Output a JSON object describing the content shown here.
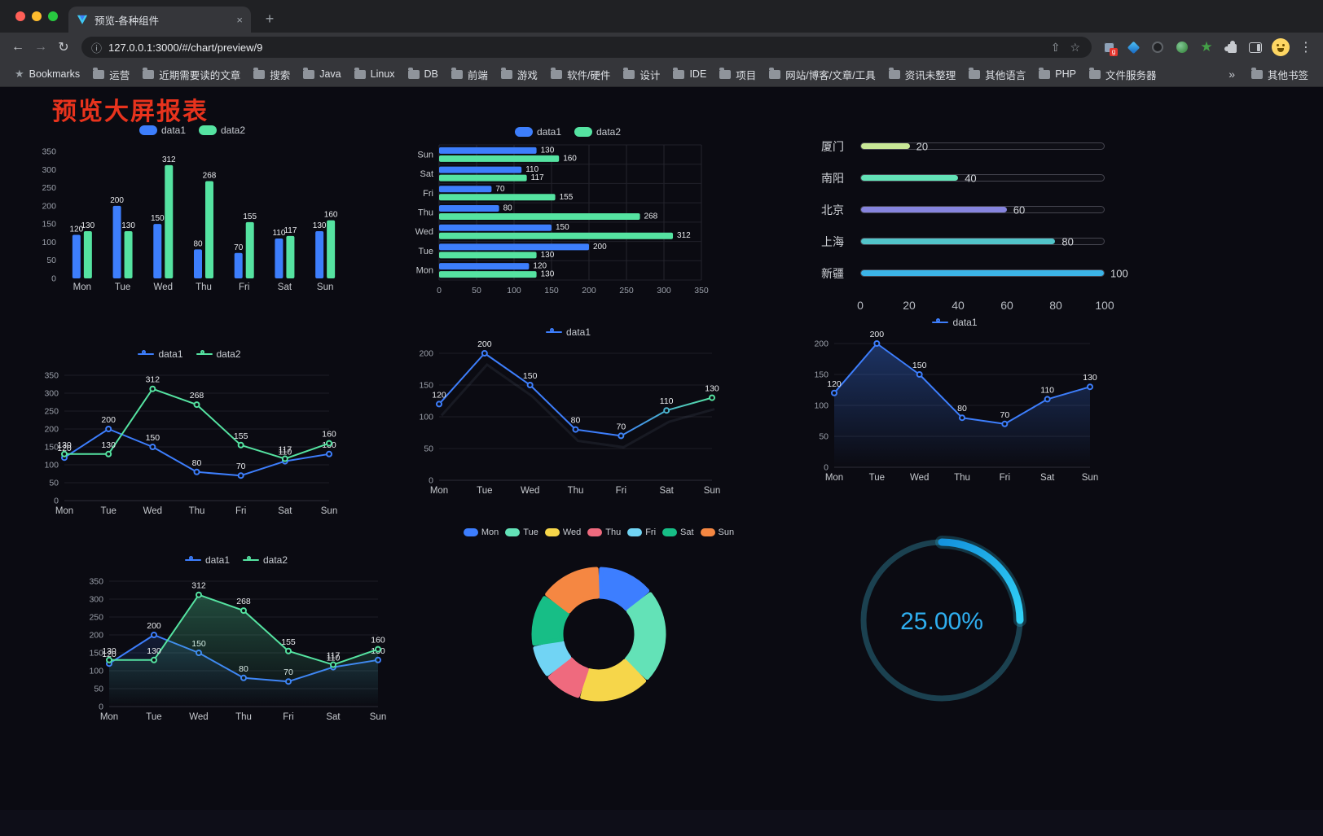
{
  "window": {
    "tab": {
      "title": "预览-各种组件"
    },
    "url": "127.0.0.1:3000/#/chart/preview/9",
    "icons": {
      "back": "←",
      "forward": "→",
      "reload": "↻",
      "newtab": "+",
      "close_tab": "×",
      "info": "ⓘ",
      "share": "⇧",
      "star": "☆",
      "menu": "⋮",
      "bookmark_star": "★",
      "ext_star": "★"
    },
    "ext_badge": "g",
    "bookmarks": [
      "Bookmarks",
      "运营",
      "近期需要读的文章",
      "搜索",
      "Java",
      "Linux",
      "DB",
      "前端",
      "游戏",
      "软件/硬件",
      "设计",
      "IDE",
      "项目",
      "网站/博客/文章/工具",
      "资讯未整理",
      "其他语言",
      "PHP",
      "文件服务器"
    ],
    "bookmarks_overflow": "»",
    "other_bookmarks": "其他书签"
  },
  "page": {
    "title": "预览大屏报表"
  },
  "chart_data": [
    {
      "id": "grouped-bar",
      "type": "bar",
      "categories": [
        "Mon",
        "Tue",
        "Wed",
        "Thu",
        "Fri",
        "Sat",
        "Sun"
      ],
      "series": [
        {
          "name": "data1",
          "color": "#3D7EFC",
          "values": [
            120,
            200,
            150,
            80,
            70,
            110,
            130
          ]
        },
        {
          "name": "data2",
          "color": "#55E3A1",
          "values": [
            130,
            130,
            312,
            268,
            155,
            117,
            160
          ]
        }
      ],
      "ylim": [
        0,
        350
      ],
      "ytick": 50,
      "legend_position": "top",
      "grid": false
    },
    {
      "id": "horizontal-bar",
      "type": "hbar",
      "categories": [
        "Mon",
        "Tue",
        "Wed",
        "Thu",
        "Fri",
        "Sat",
        "Sun"
      ],
      "series": [
        {
          "name": "data1",
          "color": "#3D7EFC",
          "values": [
            120,
            200,
            150,
            80,
            70,
            110,
            130
          ]
        },
        {
          "name": "data2",
          "color": "#55E3A1",
          "values": [
            130,
            130,
            312,
            268,
            155,
            117,
            160
          ]
        }
      ],
      "xlim": [
        0,
        350
      ],
      "xtick": 50,
      "legend_position": "top",
      "grid": true
    },
    {
      "id": "progress-bars",
      "type": "progress",
      "max": 100,
      "rows": [
        {
          "label": "厦门",
          "value": 20,
          "color": "#C9E897"
        },
        {
          "label": "南阳",
          "value": 40,
          "color": "#63E2B7"
        },
        {
          "label": "北京",
          "value": 60,
          "color": "#8684DE"
        },
        {
          "label": "上海",
          "value": 80,
          "color": "#52C4C9"
        },
        {
          "label": "新疆",
          "value": 100,
          "color": "#3CB4E7"
        }
      ],
      "axis_ticks": [
        0,
        20,
        40,
        60,
        80,
        100
      ]
    },
    {
      "id": "line-dual",
      "type": "line",
      "categories": [
        "Mon",
        "Tue",
        "Wed",
        "Thu",
        "Fri",
        "Sat",
        "Sun"
      ],
      "series": [
        {
          "name": "data1",
          "color": "#3D7EFC",
          "values": [
            120,
            200,
            150,
            80,
            70,
            110,
            130
          ]
        },
        {
          "name": "data2",
          "color": "#55E3A1",
          "values": [
            130,
            130,
            312,
            268,
            155,
            117,
            160
          ]
        }
      ],
      "ylim": [
        0,
        350
      ],
      "ytick": 50,
      "legend_position": "top",
      "grid": true
    },
    {
      "id": "line-gradient",
      "type": "line",
      "categories": [
        "Mon",
        "Tue",
        "Wed",
        "Thu",
        "Fri",
        "Sat",
        "Sun"
      ],
      "series": [
        {
          "name": "data1",
          "gradient": [
            "#3D7EFC",
            "#55E3A1"
          ],
          "values": [
            120,
            200,
            150,
            80,
            70,
            110,
            130
          ]
        }
      ],
      "ylim": [
        0,
        200
      ],
      "ytick": 50,
      "legend_position": "top",
      "grid": true,
      "echo": true
    },
    {
      "id": "line-area",
      "type": "line",
      "categories": [
        "Mon",
        "Tue",
        "Wed",
        "Thu",
        "Fri",
        "Sat",
        "Sun"
      ],
      "series": [
        {
          "name": "data1",
          "color": "#3D7EFC",
          "values": [
            120,
            200,
            150,
            80,
            70,
            110,
            130
          ],
          "area": 0.35
        }
      ],
      "ylim": [
        0,
        200
      ],
      "ytick": 50,
      "legend_position": "top",
      "grid": true
    },
    {
      "id": "line-area-dual",
      "type": "line",
      "categories": [
        "Mon",
        "Tue",
        "Wed",
        "Thu",
        "Fri",
        "Sat",
        "Sun"
      ],
      "series": [
        {
          "name": "data1",
          "color": "#3D7EFC",
          "values": [
            120,
            200,
            150,
            80,
            70,
            110,
            130
          ],
          "area": 0.15
        },
        {
          "name": "data2",
          "color": "#55E3A1",
          "values": [
            130,
            130,
            312,
            268,
            155,
            117,
            160
          ],
          "area": 0.3
        }
      ],
      "ylim": [
        0,
        350
      ],
      "ytick": 50,
      "legend_position": "top",
      "grid": true
    },
    {
      "id": "donut",
      "type": "donut",
      "categories": [
        "Mon",
        "Tue",
        "Wed",
        "Thu",
        "Fri",
        "Sat",
        "Sun"
      ],
      "values": [
        120,
        200,
        150,
        80,
        70,
        110,
        130
      ],
      "colors": [
        "#3D7EFF",
        "#63E2B7",
        "#F6D64A",
        "#EF6A7E",
        "#71D4F4",
        "#17BE86",
        "#F58742"
      ],
      "legend_position": "top"
    },
    {
      "id": "gauge",
      "type": "gauge",
      "value": 25,
      "label": "25.00%",
      "track_color": "#1B4150",
      "bar_gradient": [
        "#1493DD",
        "#31D2F7"
      ],
      "text_color": "#2FAFF0"
    }
  ]
}
